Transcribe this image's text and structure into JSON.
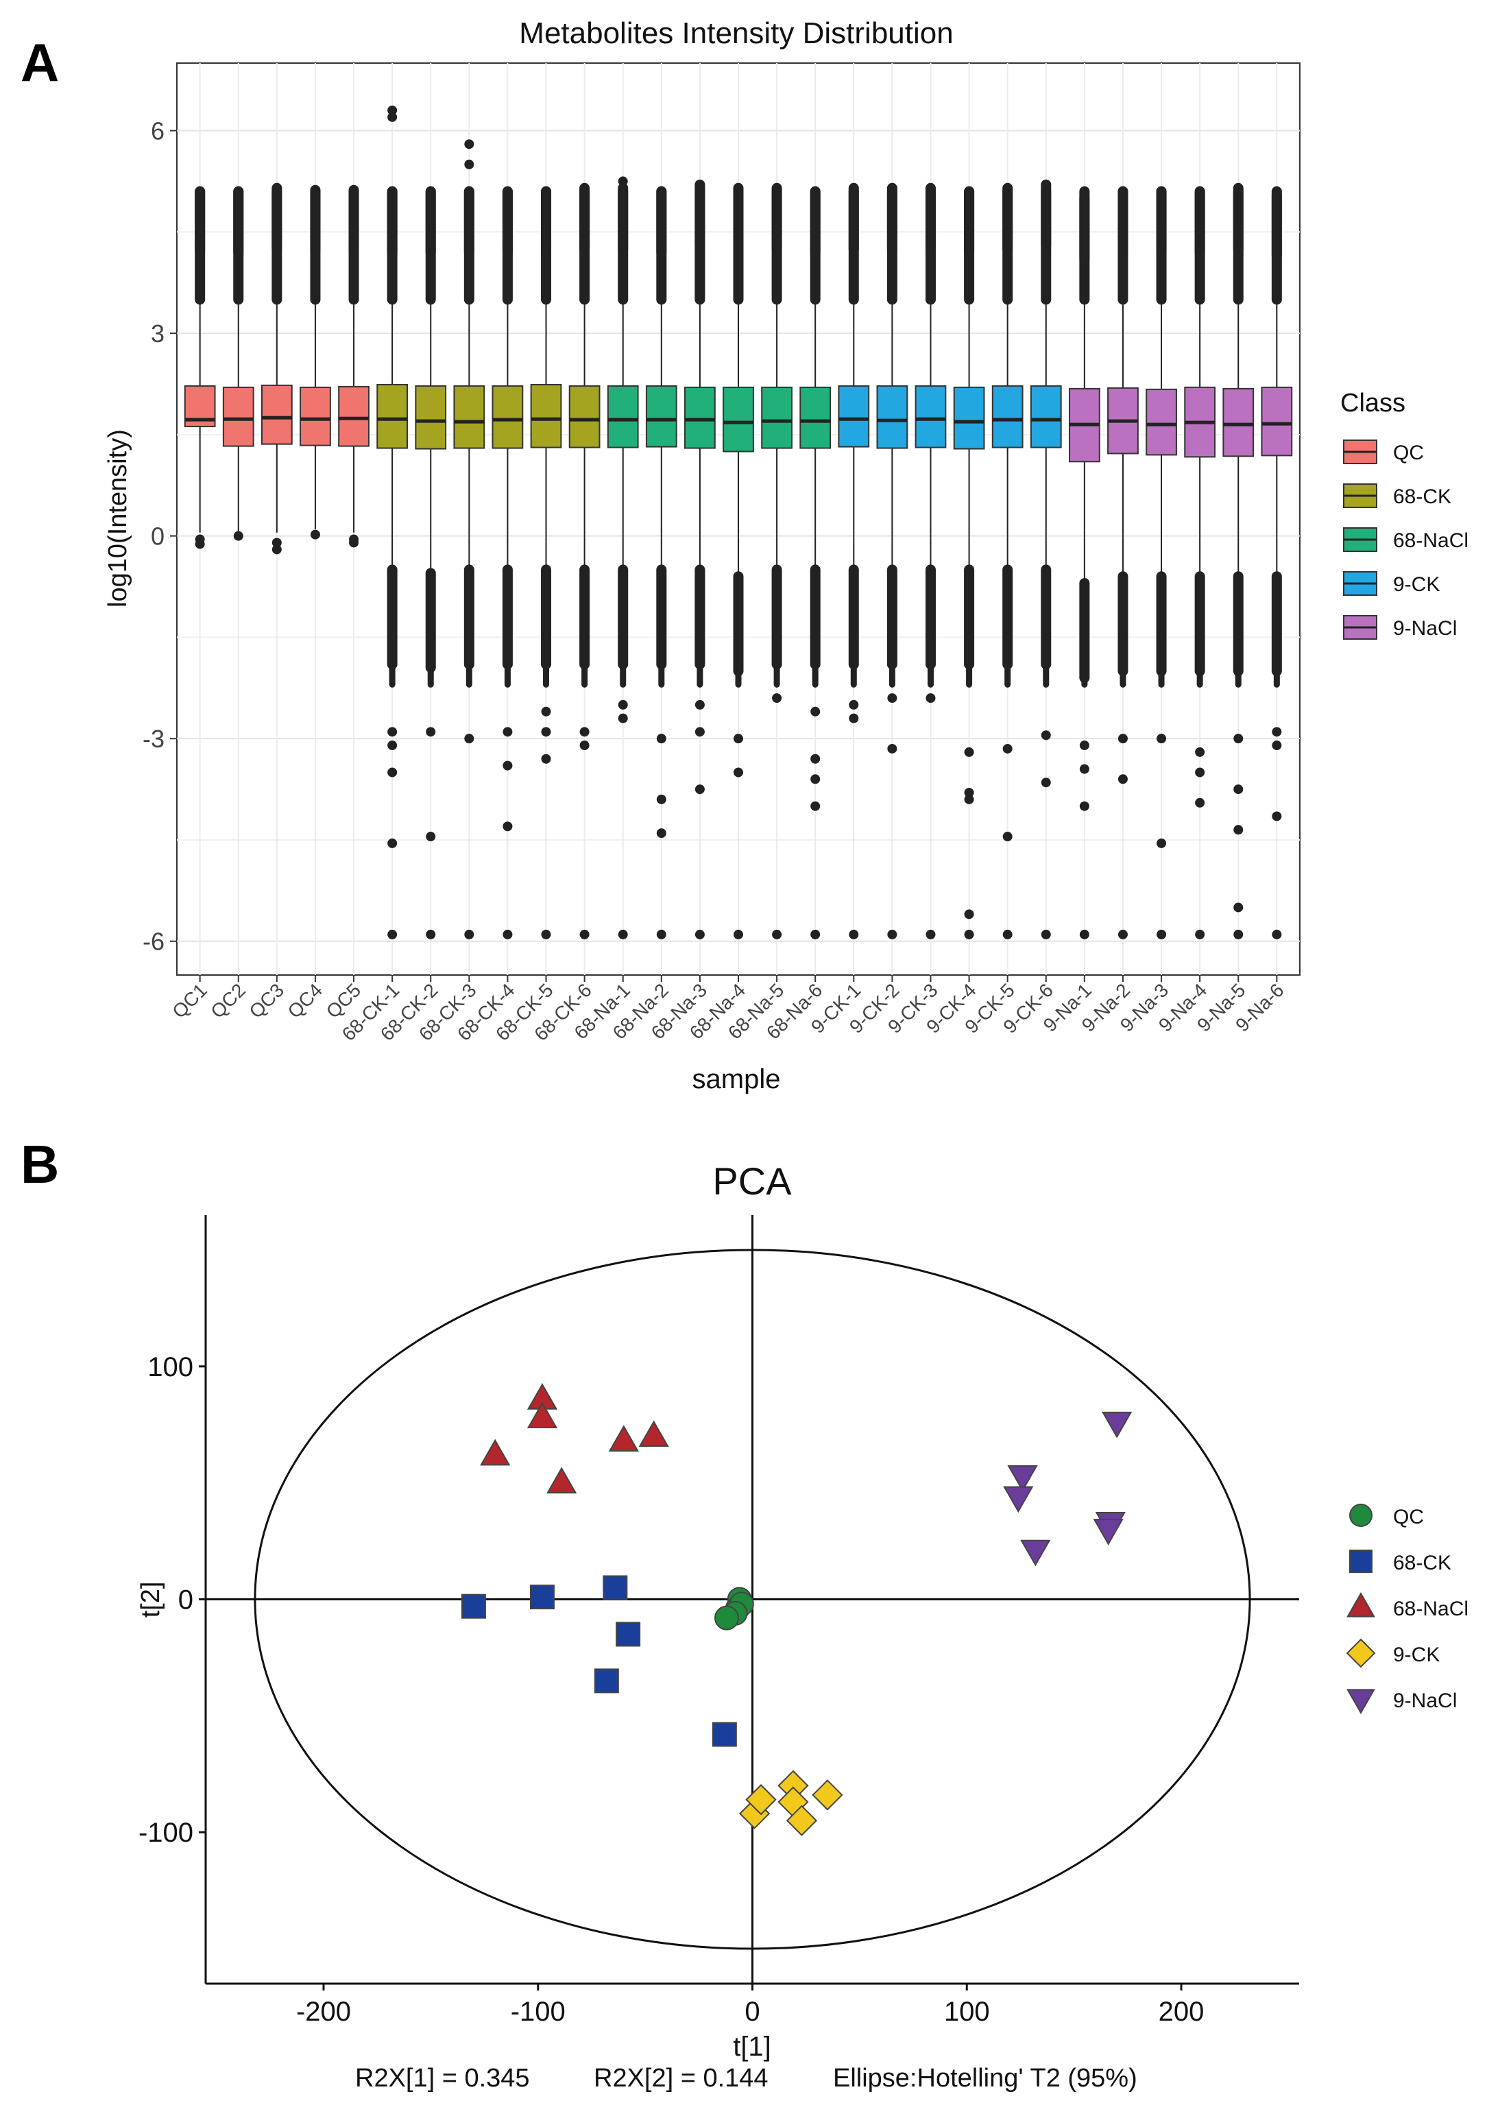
{
  "panel_labels": {
    "a": "A",
    "b": "B"
  },
  "chart_data": [
    {
      "type": "boxplot",
      "title": "Metabolites Intensity Distribution",
      "xlabel": "sample",
      "ylabel": "log10(Intensity)",
      "ylim": [
        -6.5,
        7
      ],
      "yticks": [
        -6,
        -3,
        0,
        3,
        6
      ],
      "grid": true,
      "legend": {
        "title": "Class",
        "position": "right"
      },
      "classes": [
        {
          "name": "QC",
          "color": "#F0756E"
        },
        {
          "name": "68-CK",
          "color": "#A4A420"
        },
        {
          "name": "68-NaCl",
          "color": "#22B07A"
        },
        {
          "name": "9-CK",
          "color": "#23A7E0"
        },
        {
          "name": "9-NaCl",
          "color": "#BA72C0"
        }
      ],
      "samples": [
        {
          "name": "QC1",
          "class": 0,
          "q1": 1.62,
          "median": 1.72,
          "q3": 2.22,
          "whisker_top": 5.1,
          "whisker_bottom": 0.05,
          "outliers_high": [],
          "outliers_low": [
            -0.05,
            -0.12
          ]
        },
        {
          "name": "QC2",
          "class": 0,
          "q1": 1.33,
          "median": 1.73,
          "q3": 2.2,
          "whisker_top": 5.1,
          "whisker_bottom": 0.05,
          "outliers_high": [],
          "outliers_low": [
            0.0
          ]
        },
        {
          "name": "QC3",
          "class": 0,
          "q1": 1.36,
          "median": 1.75,
          "q3": 2.23,
          "whisker_top": 5.15,
          "whisker_bottom": 0.05,
          "outliers_high": [],
          "outliers_low": [
            -0.1,
            -0.2
          ]
        },
        {
          "name": "QC4",
          "class": 0,
          "q1": 1.34,
          "median": 1.73,
          "q3": 2.2,
          "whisker_top": 5.12,
          "whisker_bottom": 0.1,
          "outliers_high": [],
          "outliers_low": [
            0.02
          ]
        },
        {
          "name": "QC5",
          "class": 0,
          "q1": 1.33,
          "median": 1.74,
          "q3": 2.21,
          "whisker_top": 5.12,
          "whisker_bottom": 0.05,
          "outliers_high": [],
          "outliers_low": [
            -0.05,
            -0.1
          ]
        },
        {
          "name": "68-CK-1",
          "class": 1,
          "q1": 1.3,
          "median": 1.73,
          "q3": 2.24,
          "whisker_top": 5.1,
          "whisker_bottom": -0.5,
          "outliers_high": [
            6.2,
            6.3
          ],
          "outliers_low": [
            -2.9,
            -3.1,
            -3.5,
            -4.55,
            -5.9
          ]
        },
        {
          "name": "68-CK-2",
          "class": 1,
          "q1": 1.29,
          "median": 1.7,
          "q3": 2.22,
          "whisker_top": 5.1,
          "whisker_bottom": -0.55,
          "outliers_high": [],
          "outliers_low": [
            -2.9,
            -4.45,
            -5.9
          ]
        },
        {
          "name": "68-CK-3",
          "class": 1,
          "q1": 1.3,
          "median": 1.69,
          "q3": 2.22,
          "whisker_top": 5.1,
          "whisker_bottom": -0.5,
          "outliers_high": [
            5.5,
            5.8
          ],
          "outliers_low": [
            -3.0,
            -5.9
          ]
        },
        {
          "name": "68-CK-4",
          "class": 1,
          "q1": 1.3,
          "median": 1.72,
          "q3": 2.22,
          "whisker_top": 5.1,
          "whisker_bottom": -0.5,
          "outliers_high": [],
          "outliers_low": [
            -2.9,
            -3.4,
            -4.3,
            -5.9
          ]
        },
        {
          "name": "68-CK-5",
          "class": 1,
          "q1": 1.31,
          "median": 1.73,
          "q3": 2.24,
          "whisker_top": 5.1,
          "whisker_bottom": -0.5,
          "outliers_high": [],
          "outliers_low": [
            -2.6,
            -2.9,
            -3.3,
            -5.9
          ]
        },
        {
          "name": "68-CK-6",
          "class": 1,
          "q1": 1.31,
          "median": 1.72,
          "q3": 2.22,
          "whisker_top": 5.15,
          "whisker_bottom": -0.5,
          "outliers_high": [],
          "outliers_low": [
            -2.9,
            -3.1,
            -5.9
          ]
        },
        {
          "name": "68-Na-1",
          "class": 2,
          "q1": 1.31,
          "median": 1.72,
          "q3": 2.22,
          "whisker_top": 5.15,
          "whisker_bottom": -0.5,
          "outliers_high": [
            5.25
          ],
          "outliers_low": [
            -2.5,
            -2.7,
            -5.9
          ]
        },
        {
          "name": "68-Na-2",
          "class": 2,
          "q1": 1.32,
          "median": 1.72,
          "q3": 2.22,
          "whisker_top": 5.1,
          "whisker_bottom": -0.5,
          "outliers_high": [],
          "outliers_low": [
            -3.0,
            -3.9,
            -4.4,
            -5.9
          ]
        },
        {
          "name": "68-Na-3",
          "class": 2,
          "q1": 1.3,
          "median": 1.72,
          "q3": 2.2,
          "whisker_top": 5.2,
          "whisker_bottom": -0.5,
          "outliers_high": [],
          "outliers_low": [
            -2.5,
            -2.9,
            -3.75,
            -5.9
          ]
        },
        {
          "name": "68-Na-4",
          "class": 2,
          "q1": 1.25,
          "median": 1.68,
          "q3": 2.2,
          "whisker_top": 5.15,
          "whisker_bottom": -0.6,
          "outliers_high": [],
          "outliers_low": [
            -3.0,
            -3.5,
            -5.9
          ]
        },
        {
          "name": "68-Na-5",
          "class": 2,
          "q1": 1.3,
          "median": 1.7,
          "q3": 2.2,
          "whisker_top": 5.15,
          "whisker_bottom": -0.5,
          "outliers_high": [],
          "outliers_low": [
            -2.4,
            -5.9
          ]
        },
        {
          "name": "68-Na-6",
          "class": 2,
          "q1": 1.3,
          "median": 1.7,
          "q3": 2.2,
          "whisker_top": 5.1,
          "whisker_bottom": -0.5,
          "outliers_high": [],
          "outliers_low": [
            -2.6,
            -3.3,
            -3.6,
            -4.0,
            -5.9
          ]
        },
        {
          "name": "9-CK-1",
          "class": 3,
          "q1": 1.32,
          "median": 1.73,
          "q3": 2.22,
          "whisker_top": 5.15,
          "whisker_bottom": -0.5,
          "outliers_high": [],
          "outliers_low": [
            -2.5,
            -2.7,
            -5.9
          ]
        },
        {
          "name": "9-CK-2",
          "class": 3,
          "q1": 1.3,
          "median": 1.71,
          "q3": 2.22,
          "whisker_top": 5.15,
          "whisker_bottom": -0.5,
          "outliers_high": [],
          "outliers_low": [
            -2.4,
            -3.15,
            -5.9
          ]
        },
        {
          "name": "9-CK-3",
          "class": 3,
          "q1": 1.31,
          "median": 1.73,
          "q3": 2.22,
          "whisker_top": 5.15,
          "whisker_bottom": -0.5,
          "outliers_high": [],
          "outliers_low": [
            -2.4,
            -5.9
          ]
        },
        {
          "name": "9-CK-4",
          "class": 3,
          "q1": 1.29,
          "median": 1.69,
          "q3": 2.2,
          "whisker_top": 5.1,
          "whisker_bottom": -0.5,
          "outliers_high": [],
          "outliers_low": [
            -3.2,
            -3.8,
            -3.9,
            -5.6,
            -5.9
          ]
        },
        {
          "name": "9-CK-5",
          "class": 3,
          "q1": 1.31,
          "median": 1.72,
          "q3": 2.22,
          "whisker_top": 5.15,
          "whisker_bottom": -0.5,
          "outliers_high": [],
          "outliers_low": [
            -3.15,
            -4.45,
            -5.9
          ]
        },
        {
          "name": "9-CK-6",
          "class": 3,
          "q1": 1.31,
          "median": 1.72,
          "q3": 2.22,
          "whisker_top": 5.2,
          "whisker_bottom": -0.5,
          "outliers_high": [],
          "outliers_low": [
            -2.95,
            -3.65,
            -5.9
          ]
        },
        {
          "name": "9-Na-1",
          "class": 4,
          "q1": 1.1,
          "median": 1.65,
          "q3": 2.18,
          "whisker_top": 5.0,
          "whisker_bottom": -0.7,
          "outliers_high": [],
          "outliers_low": [
            -3.1,
            -3.45,
            -4.0,
            -5.9
          ]
        },
        {
          "name": "9-Na-2",
          "class": 4,
          "q1": 1.22,
          "median": 1.7,
          "q3": 2.19,
          "whisker_top": 5.1,
          "whisker_bottom": -0.6,
          "outliers_high": [],
          "outliers_low": [
            -3.0,
            -3.6,
            -5.9
          ]
        },
        {
          "name": "9-Na-3",
          "class": 4,
          "q1": 1.2,
          "median": 1.65,
          "q3": 2.17,
          "whisker_top": 5.1,
          "whisker_bottom": -0.6,
          "outliers_high": [],
          "outliers_low": [
            -3.0,
            -4.55,
            -5.9
          ]
        },
        {
          "name": "9-Na-4",
          "class": 4,
          "q1": 1.17,
          "median": 1.68,
          "q3": 2.2,
          "whisker_top": 5.1,
          "whisker_bottom": -0.6,
          "outliers_high": [],
          "outliers_low": [
            -3.2,
            -3.5,
            -3.95,
            -5.9
          ]
        },
        {
          "name": "9-Na-5",
          "class": 4,
          "q1": 1.18,
          "median": 1.65,
          "q3": 2.18,
          "whisker_top": 5.15,
          "whisker_bottom": -0.6,
          "outliers_high": [],
          "outliers_low": [
            -3.0,
            -3.75,
            -4.35,
            -5.5,
            -5.9
          ]
        },
        {
          "name": "9-Na-6",
          "class": 4,
          "q1": 1.19,
          "median": 1.66,
          "q3": 2.2,
          "whisker_top": 5.05,
          "whisker_bottom": -0.6,
          "outliers_high": [],
          "outliers_low": [
            -2.9,
            -3.1,
            -4.15,
            -5.9
          ]
        }
      ]
    },
    {
      "type": "scatter",
      "title": "PCA",
      "xlabel": "t[1]",
      "ylabel": "t[2]",
      "xlim": [
        -255,
        255
      ],
      "ylim": [
        -165,
        165
      ],
      "xticks": [
        -200,
        -100,
        0,
        100,
        200
      ],
      "yticks": [
        -100,
        0,
        100
      ],
      "grid": false,
      "ellipse": {
        "rx": 232,
        "ry": 150,
        "label": "Ellipse:Hotelling' T2 (95%)"
      },
      "footer": {
        "r2x1": "R2X[1]  =  0.345",
        "r2x2": "R2X[2]  =  0.144"
      },
      "legend_position": "right",
      "series": [
        {
          "name": "QC",
          "marker": "circle",
          "color": "#1F8A3B",
          "points": [
            [
              -6,
              0
            ],
            [
              -7,
              -4
            ],
            [
              -5,
              -2
            ],
            [
              -8,
              -6
            ],
            [
              -12,
              -8
            ]
          ]
        },
        {
          "name": "68-CK",
          "marker": "square",
          "color": "#1A3F9B",
          "points": [
            [
              -130,
              -3
            ],
            [
              -98,
              1
            ],
            [
              -64,
              5
            ],
            [
              -58,
              -15
            ],
            [
              -68,
              -35
            ],
            [
              -13,
              -58
            ]
          ]
        },
        {
          "name": "68-NaCl",
          "marker": "triangle-up",
          "color": "#B3262B",
          "points": [
            [
              -120,
              62
            ],
            [
              -98,
              86
            ],
            [
              -98,
              78
            ],
            [
              -89,
              50
            ],
            [
              -60,
              68
            ],
            [
              -46,
              70
            ]
          ]
        },
        {
          "name": "9-CK",
          "marker": "diamond",
          "color": "#F2C81C",
          "points": [
            [
              1,
              -92
            ],
            [
              4,
              -86
            ],
            [
              19,
              -80
            ],
            [
              19,
              -87
            ],
            [
              23,
              -95
            ],
            [
              35,
              -84
            ]
          ]
        },
        {
          "name": "9-NaCl",
          "marker": "triangle-down",
          "color": "#6A3D9A",
          "points": [
            [
              126,
              53
            ],
            [
              124,
              44
            ],
            [
              132,
              21
            ],
            [
              167,
              33
            ],
            [
              166,
              30
            ],
            [
              170,
              76
            ]
          ]
        }
      ]
    }
  ]
}
